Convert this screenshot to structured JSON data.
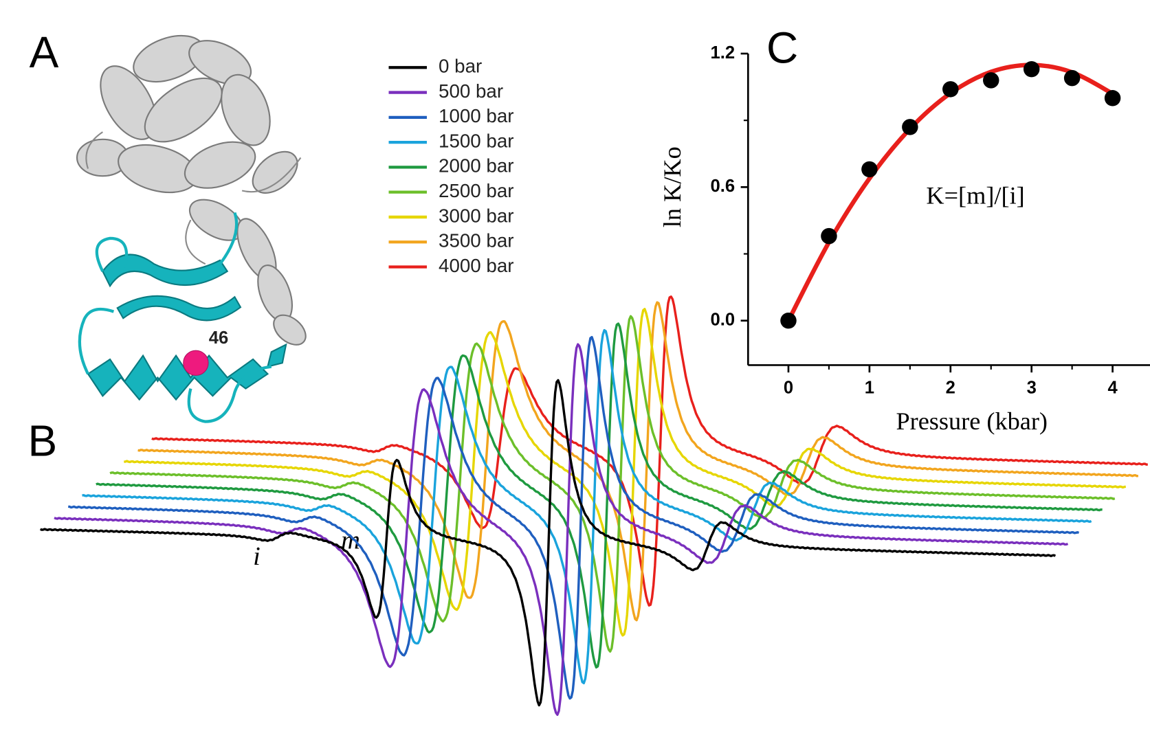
{
  "panel_labels": [
    "A",
    "B",
    "C"
  ],
  "structure": {
    "residue_label": "46"
  },
  "chart_data": [
    {
      "type": "spectra",
      "series": [
        {
          "name": "0 bar",
          "color": "#000000"
        },
        {
          "name": "500 bar",
          "color": "#7a2fbd"
        },
        {
          "name": "1000 bar",
          "color": "#1f5fbf"
        },
        {
          "name": "1500 bar",
          "color": "#1aa3dc"
        },
        {
          "name": "2000 bar",
          "color": "#1f9a40"
        },
        {
          "name": "2500 bar",
          "color": "#6cbf2a"
        },
        {
          "name": "3000 bar",
          "color": "#e6d600"
        },
        {
          "name": "3500 bar",
          "color": "#f2a51e"
        },
        {
          "name": "4000 bar",
          "color": "#e8201c"
        }
      ],
      "annotations": [
        "i",
        "m"
      ]
    },
    {
      "type": "scatter",
      "xlabel": "Pressure (kbar)",
      "ylabel": "ln K/Ko",
      "annotation": "K=[m]/[i]",
      "x": [
        0,
        0.5,
        1,
        1.5,
        2,
        2.5,
        3,
        3.5,
        4
      ],
      "series": [
        {
          "color": "#000000",
          "values": [
            0,
            0.38,
            0.68,
            0.87,
            1.04,
            1.08,
            1.13,
            1.09,
            1.0
          ]
        }
      ],
      "fit": {
        "color": "#e8201c",
        "x": [
          0,
          0.5,
          1,
          1.5,
          2,
          2.5,
          3,
          3.5,
          4
        ],
        "values": [
          0,
          0.352,
          0.639,
          0.862,
          1.022,
          1.118,
          1.149,
          1.116,
          1.02
        ]
      },
      "xlim": [
        -0.5,
        4.5
      ],
      "ylim": [
        -0.2,
        1.2
      ],
      "xticks": [
        0,
        1,
        2,
        3,
        4
      ],
      "xminor_ticks": [
        0.5,
        1.5,
        2.5,
        3.5
      ],
      "yticks": [
        {
          "value": 0,
          "label": "0.0"
        },
        {
          "value": 0.6,
          "label": "0.6"
        },
        {
          "value": 1.2,
          "label": "1.2"
        }
      ],
      "yminor_ticks": [
        0.3,
        0.9
      ]
    }
  ]
}
